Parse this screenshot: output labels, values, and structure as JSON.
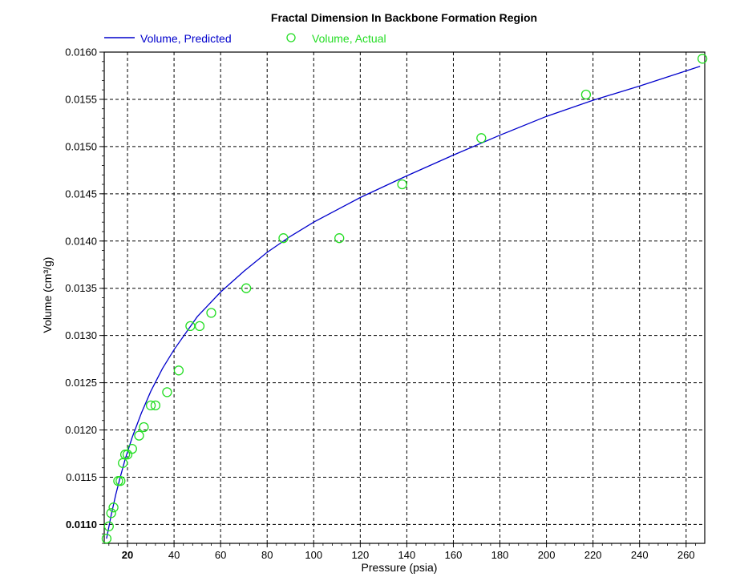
{
  "chart_data": {
    "type": "scatter",
    "title": "Fractal Dimension In Backbone Formation Region",
    "xlabel": "Pressure (psia)",
    "ylabel": "Volume (cm³/g)",
    "xlim": [
      10,
      268
    ],
    "ylim": [
      0.0108,
      0.016
    ],
    "x_ticks": [
      20,
      40,
      60,
      80,
      100,
      120,
      140,
      160,
      180,
      200,
      220,
      240,
      260
    ],
    "x_tick_labels": [
      "20",
      "40",
      "60",
      "80",
      "100",
      "120",
      "140",
      "160",
      "180",
      "200",
      "220",
      "240",
      "260"
    ],
    "y_ticks": [
      0.011,
      0.0115,
      0.012,
      0.0125,
      0.013,
      0.0135,
      0.014,
      0.0145,
      0.015,
      0.0155,
      0.016
    ],
    "y_tick_labels": [
      "0.0110",
      "0.0115",
      "0.0120",
      "0.0125",
      "0.0130",
      "0.0135",
      "0.0140",
      "0.0145",
      "0.0150",
      "0.0155",
      "0.0160"
    ],
    "grid": true,
    "legend_position": "top-left",
    "colors": {
      "predicted": "#0000cc",
      "actual": "#22dd22",
      "grid": "#000000"
    },
    "series": [
      {
        "name": "Volume, Predicted",
        "kind": "line",
        "x": [
          11,
          13,
          15,
          17,
          19,
          22,
          26,
          30,
          35,
          40,
          50,
          60,
          70,
          80,
          90,
          100,
          120,
          140,
          160,
          180,
          200,
          220,
          240,
          266
        ],
        "y": [
          0.01085,
          0.0111,
          0.01132,
          0.01151,
          0.01169,
          0.01192,
          0.01218,
          0.01241,
          0.01265,
          0.01285,
          0.0132,
          0.01346,
          0.01368,
          0.01388,
          0.01405,
          0.0142,
          0.01446,
          0.01469,
          0.01491,
          0.01512,
          0.01532,
          0.01549,
          0.01564,
          0.01585
        ]
      },
      {
        "name": "Volume, Actual",
        "kind": "scatter",
        "x": [
          11,
          12,
          13,
          14,
          16,
          17,
          18,
          19,
          20,
          22,
          25,
          27,
          30,
          32,
          37,
          42,
          47,
          51,
          56,
          71,
          87,
          111,
          138,
          172,
          217,
          267
        ],
        "y": [
          0.01085,
          0.01098,
          0.01112,
          0.01118,
          0.01146,
          0.01146,
          0.01165,
          0.01174,
          0.01174,
          0.0118,
          0.01194,
          0.01203,
          0.01226,
          0.01226,
          0.0124,
          0.01263,
          0.0131,
          0.0131,
          0.01324,
          0.0135,
          0.01403,
          0.01403,
          0.0146,
          0.01509,
          0.01555,
          0.01593
        ]
      }
    ]
  }
}
